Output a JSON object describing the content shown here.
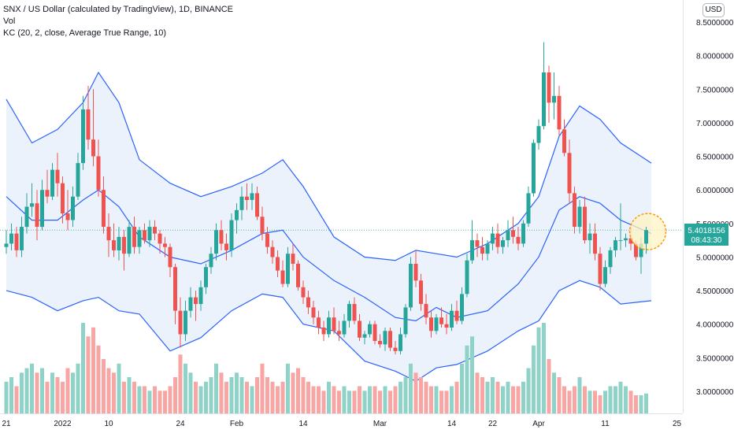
{
  "legend": {
    "title": "SNX / US Dollar (calculated by TradingView), 1D, BINANCE",
    "volume_label": "Vol",
    "indicator_label": "KC (20, 2, close, Average True Range, 10)"
  },
  "currency": "USD",
  "price_badge": {
    "price": "5.4018156",
    "countdown": "08:43:30"
  },
  "colors": {
    "up": "#26a69a",
    "down": "#ef5350",
    "volume_up": "#8fd3c8",
    "volume_down": "#f7a6a4",
    "channel_line": "#2962ff",
    "channel_fill": "#eaf1fb",
    "price_line": "#26a69a",
    "highlight_circle": "#ff9800",
    "highlight_fill": "#fff3c4"
  },
  "chart_data": {
    "type": "candlestick",
    "y_axis": {
      "ticks": [
        "3.0000000",
        "3.5000000",
        "4.0000000",
        "4.5000000",
        "5.0000000",
        "5.5000000",
        "6.0000000",
        "6.5000000",
        "7.0000000",
        "7.5000000",
        "8.0000000",
        "8.5000000"
      ],
      "tick_values": [
        3.0,
        3.5,
        4.0,
        4.5,
        5.0,
        5.5,
        6.0,
        6.5,
        7.0,
        7.5,
        8.0,
        8.5
      ],
      "range": [
        2.72,
        8.6
      ]
    },
    "x_axis": {
      "ticks": [
        "21",
        "2022",
        "10",
        "24",
        "Feb",
        "14",
        "Mar",
        "14",
        "22",
        "Apr",
        "11",
        "25"
      ],
      "tick_day_index": [
        0,
        11,
        20,
        34,
        45,
        58,
        73,
        87,
        95,
        104,
        117,
        131
      ]
    },
    "first_day": "2021-12-21",
    "candles": [
      [
        5.15,
        5.4,
        5.05,
        5.2
      ],
      [
        5.2,
        5.5,
        5.1,
        5.35
      ],
      [
        5.35,
        5.45,
        5.0,
        5.1
      ],
      [
        5.1,
        5.6,
        5.0,
        5.45
      ],
      [
        5.45,
        5.95,
        5.35,
        5.75
      ],
      [
        5.75,
        6.1,
        5.6,
        5.8
      ],
      [
        5.8,
        6.0,
        5.25,
        5.45
      ],
      [
        5.45,
        6.15,
        5.4,
        6.0
      ],
      [
        6.0,
        6.3,
        5.8,
        5.9
      ],
      [
        5.9,
        6.4,
        5.85,
        6.3
      ],
      [
        6.3,
        6.55,
        5.9,
        6.1
      ],
      [
        6.1,
        6.2,
        5.5,
        5.65
      ],
      [
        5.65,
        6.0,
        5.4,
        5.55
      ],
      [
        5.55,
        6.05,
        5.45,
        5.9
      ],
      [
        5.9,
        6.55,
        5.85,
        6.4
      ],
      [
        6.4,
        7.4,
        6.3,
        7.2
      ],
      [
        7.2,
        7.55,
        6.6,
        6.75
      ],
      [
        6.75,
        7.5,
        6.35,
        6.5
      ],
      [
        6.5,
        6.75,
        5.9,
        6.0
      ],
      [
        6.0,
        6.2,
        5.35,
        5.45
      ],
      [
        5.45,
        5.65,
        5.0,
        5.25
      ],
      [
        5.25,
        5.5,
        5.0,
        5.1
      ],
      [
        5.1,
        5.45,
        4.95,
        5.3
      ],
      [
        5.3,
        5.4,
        4.8,
        5.05
      ],
      [
        5.05,
        5.55,
        5.0,
        5.45
      ],
      [
        5.45,
        5.6,
        5.05,
        5.15
      ],
      [
        5.15,
        5.45,
        5.05,
        5.4
      ],
      [
        5.4,
        5.5,
        5.2,
        5.25
      ],
      [
        5.25,
        5.55,
        5.15,
        5.45
      ],
      [
        5.45,
        5.55,
        5.25,
        5.35
      ],
      [
        5.35,
        5.4,
        5.05,
        5.2
      ],
      [
        5.2,
        5.3,
        5.0,
        5.15
      ],
      [
        5.15,
        5.2,
        4.7,
        4.85
      ],
      [
        4.85,
        4.9,
        4.0,
        4.2
      ],
      [
        4.2,
        4.4,
        3.65,
        3.85
      ],
      [
        3.85,
        4.35,
        3.75,
        4.2
      ],
      [
        4.2,
        4.55,
        4.1,
        4.4
      ],
      [
        4.4,
        4.5,
        4.05,
        4.3
      ],
      [
        4.3,
        4.65,
        4.2,
        4.55
      ],
      [
        4.55,
        4.9,
        4.45,
        4.85
      ],
      [
        4.85,
        5.15,
        4.75,
        5.05
      ],
      [
        5.05,
        5.5,
        4.95,
        5.4
      ],
      [
        5.4,
        5.55,
        5.1,
        5.2
      ],
      [
        5.2,
        5.35,
        4.95,
        5.1
      ],
      [
        5.1,
        5.65,
        5.0,
        5.55
      ],
      [
        5.55,
        5.8,
        5.35,
        5.7
      ],
      [
        5.7,
        6.05,
        5.55,
        5.9
      ],
      [
        5.9,
        6.1,
        5.7,
        5.85
      ],
      [
        5.85,
        6.1,
        5.7,
        5.95
      ],
      [
        5.95,
        6.05,
        5.55,
        5.6
      ],
      [
        5.6,
        5.75,
        5.25,
        5.35
      ],
      [
        5.35,
        5.45,
        5.05,
        5.15
      ],
      [
        5.15,
        5.25,
        4.9,
        5.0
      ],
      [
        5.0,
        5.1,
        4.7,
        4.8
      ],
      [
        4.8,
        4.95,
        4.55,
        4.6
      ],
      [
        4.6,
        5.15,
        4.55,
        5.05
      ],
      [
        5.05,
        5.2,
        4.8,
        4.9
      ],
      [
        4.9,
        4.95,
        4.5,
        4.55
      ],
      [
        4.55,
        4.65,
        4.3,
        4.4
      ],
      [
        4.4,
        4.5,
        4.15,
        4.25
      ],
      [
        4.25,
        4.35,
        4.0,
        4.1
      ],
      [
        4.1,
        4.2,
        3.85,
        3.95
      ],
      [
        3.95,
        4.05,
        3.75,
        3.85
      ],
      [
        3.85,
        4.2,
        3.8,
        4.1
      ],
      [
        4.1,
        4.25,
        3.85,
        3.9
      ],
      [
        3.9,
        4.05,
        3.75,
        3.85
      ],
      [
        3.85,
        4.15,
        3.8,
        4.05
      ],
      [
        4.05,
        4.35,
        3.95,
        4.3
      ],
      [
        4.3,
        4.4,
        4.0,
        4.05
      ],
      [
        4.05,
        4.15,
        3.75,
        3.8
      ],
      [
        3.8,
        3.9,
        3.7,
        3.85
      ],
      [
        3.85,
        4.05,
        3.8,
        4.0
      ],
      [
        4.0,
        4.05,
        3.7,
        3.75
      ],
      [
        3.75,
        3.85,
        3.65,
        3.7
      ],
      [
        3.7,
        3.95,
        3.6,
        3.9
      ],
      [
        3.9,
        3.95,
        3.6,
        3.65
      ],
      [
        3.65,
        3.75,
        3.55,
        3.6
      ],
      [
        3.6,
        3.95,
        3.55,
        3.85
      ],
      [
        3.85,
        4.3,
        3.8,
        4.25
      ],
      [
        4.25,
        5.0,
        4.2,
        4.9
      ],
      [
        4.9,
        5.1,
        4.55,
        4.65
      ],
      [
        4.65,
        4.75,
        4.2,
        4.3
      ],
      [
        4.3,
        4.45,
        4.0,
        4.1
      ],
      [
        4.1,
        4.2,
        3.8,
        3.9
      ],
      [
        3.9,
        4.15,
        3.85,
        4.1
      ],
      [
        4.1,
        4.25,
        3.95,
        4.0
      ],
      [
        4.0,
        4.15,
        3.85,
        3.95
      ],
      [
        3.95,
        4.3,
        3.9,
        4.2
      ],
      [
        4.2,
        4.35,
        4.0,
        4.05
      ],
      [
        4.05,
        4.55,
        4.0,
        4.45
      ],
      [
        4.45,
        5.05,
        4.4,
        4.95
      ],
      [
        4.95,
        5.55,
        4.9,
        5.25
      ],
      [
        5.25,
        5.35,
        5.0,
        5.15
      ],
      [
        5.15,
        5.3,
        4.95,
        5.05
      ],
      [
        5.05,
        5.25,
        4.95,
        5.2
      ],
      [
        5.2,
        5.45,
        5.1,
        5.35
      ],
      [
        5.35,
        5.5,
        5.05,
        5.15
      ],
      [
        5.15,
        5.3,
        5.05,
        5.25
      ],
      [
        5.25,
        5.55,
        5.15,
        5.4
      ],
      [
        5.4,
        5.6,
        5.2,
        5.3
      ],
      [
        5.3,
        5.45,
        5.1,
        5.2
      ],
      [
        5.2,
        5.55,
        5.15,
        5.5
      ],
      [
        5.5,
        6.05,
        5.45,
        5.95
      ],
      [
        5.95,
        6.75,
        5.9,
        6.7
      ],
      [
        6.7,
        7.05,
        6.6,
        6.95
      ],
      [
        6.95,
        8.2,
        6.9,
        7.75
      ],
      [
        7.75,
        7.85,
        7.0,
        7.3
      ],
      [
        7.3,
        7.75,
        7.05,
        7.4
      ],
      [
        7.4,
        7.55,
        6.8,
        6.9
      ],
      [
        6.9,
        7.05,
        6.5,
        6.55
      ],
      [
        6.55,
        6.75,
        5.8,
        5.95
      ],
      [
        5.95,
        6.05,
        5.35,
        5.45
      ],
      [
        5.45,
        5.85,
        5.35,
        5.75
      ],
      [
        5.75,
        5.9,
        5.2,
        5.25
      ],
      [
        5.25,
        5.5,
        5.05,
        5.35
      ],
      [
        5.35,
        5.5,
        4.95,
        5.05
      ],
      [
        5.05,
        5.15,
        4.5,
        4.6
      ],
      [
        4.6,
        4.95,
        4.55,
        4.85
      ],
      [
        4.85,
        5.15,
        4.75,
        5.1
      ],
      [
        5.1,
        5.3,
        5.0,
        5.25
      ],
      [
        5.25,
        5.8,
        5.1,
        5.25
      ],
      [
        5.25,
        5.35,
        5.15,
        5.28
      ],
      [
        5.28,
        5.45,
        5.1,
        5.2
      ],
      [
        5.2,
        5.25,
        4.95,
        5.0
      ],
      [
        5.0,
        5.3,
        4.75,
        5.2
      ],
      [
        5.2,
        5.45,
        5.05,
        5.4
      ]
    ],
    "volumes": [
      0.35,
      0.4,
      0.3,
      0.45,
      0.5,
      0.55,
      0.45,
      0.5,
      0.35,
      0.45,
      0.4,
      0.35,
      0.5,
      0.45,
      0.55,
      1.0,
      0.85,
      0.95,
      0.75,
      0.6,
      0.5,
      0.45,
      0.55,
      0.35,
      0.4,
      0.35,
      0.3,
      0.3,
      0.25,
      0.3,
      0.25,
      0.25,
      0.3,
      0.4,
      0.65,
      0.55,
      0.45,
      0.35,
      0.3,
      0.35,
      0.4,
      0.55,
      0.45,
      0.35,
      0.4,
      0.45,
      0.4,
      0.35,
      0.3,
      0.4,
      0.55,
      0.4,
      0.35,
      0.3,
      0.35,
      0.55,
      0.45,
      0.5,
      0.4,
      0.35,
      0.3,
      0.3,
      0.25,
      0.35,
      0.3,
      0.25,
      0.3,
      0.25,
      0.25,
      0.3,
      0.25,
      0.3,
      0.3,
      0.25,
      0.3,
      0.25,
      0.3,
      0.35,
      0.4,
      0.55,
      0.45,
      0.4,
      0.35,
      0.3,
      0.3,
      0.25,
      0.25,
      0.3,
      0.35,
      0.55,
      0.75,
      0.85,
      0.45,
      0.4,
      0.35,
      0.4,
      0.35,
      0.3,
      0.35,
      0.3,
      0.3,
      0.35,
      0.5,
      0.75,
      0.95,
      1.0,
      0.6,
      0.45,
      0.4,
      0.3,
      0.25,
      0.3,
      0.4,
      0.3,
      0.25,
      0.25,
      0.2,
      0.25,
      0.3,
      0.3,
      0.35,
      0.3,
      0.25,
      0.2,
      0.2,
      0.22
    ],
    "keltner": {
      "upper": [
        [
          0,
          7.35
        ],
        [
          5,
          6.7
        ],
        [
          10,
          6.9
        ],
        [
          15,
          7.3
        ],
        [
          18,
          7.75
        ],
        [
          22,
          7.3
        ],
        [
          26,
          6.45
        ],
        [
          32,
          6.1
        ],
        [
          38,
          5.9
        ],
        [
          44,
          6.05
        ],
        [
          50,
          6.25
        ],
        [
          54,
          6.45
        ],
        [
          58,
          6.05
        ],
        [
          64,
          5.3
        ],
        [
          70,
          5.0
        ],
        [
          76,
          4.95
        ],
        [
          80,
          5.1
        ],
        [
          84,
          5.05
        ],
        [
          88,
          5.0
        ],
        [
          94,
          5.2
        ],
        [
          100,
          5.5
        ],
        [
          104,
          5.9
        ],
        [
          108,
          6.8
        ],
        [
          112,
          7.25
        ],
        [
          116,
          7.05
        ],
        [
          120,
          6.7
        ],
        [
          126,
          6.4
        ]
      ],
      "middle": [
        [
          0,
          5.9
        ],
        [
          5,
          5.55
        ],
        [
          10,
          5.55
        ],
        [
          15,
          5.85
        ],
        [
          18,
          6.0
        ],
        [
          22,
          5.75
        ],
        [
          26,
          5.3
        ],
        [
          32,
          5.0
        ],
        [
          38,
          4.9
        ],
        [
          44,
          5.1
        ],
        [
          50,
          5.35
        ],
        [
          54,
          5.4
        ],
        [
          58,
          5.0
        ],
        [
          64,
          4.65
        ],
        [
          70,
          4.4
        ],
        [
          76,
          4.1
        ],
        [
          80,
          4.05
        ],
        [
          84,
          4.25
        ],
        [
          88,
          4.1
        ],
        [
          94,
          4.2
        ],
        [
          100,
          4.6
        ],
        [
          104,
          5.0
        ],
        [
          108,
          5.7
        ],
        [
          112,
          5.9
        ],
        [
          116,
          5.8
        ],
        [
          120,
          5.55
        ],
        [
          126,
          5.35
        ]
      ],
      "lower": [
        [
          0,
          4.5
        ],
        [
          5,
          4.4
        ],
        [
          10,
          4.2
        ],
        [
          15,
          4.35
        ],
        [
          18,
          4.4
        ],
        [
          22,
          4.2
        ],
        [
          26,
          4.15
        ],
        [
          32,
          3.6
        ],
        [
          38,
          3.8
        ],
        [
          44,
          4.2
        ],
        [
          50,
          4.45
        ],
        [
          54,
          4.4
        ],
        [
          58,
          4.0
        ],
        [
          64,
          3.9
        ],
        [
          70,
          3.45
        ],
        [
          76,
          3.3
        ],
        [
          80,
          3.15
        ],
        [
          84,
          3.35
        ],
        [
          88,
          3.4
        ],
        [
          94,
          3.6
        ],
        [
          100,
          3.9
        ],
        [
          104,
          4.05
        ],
        [
          108,
          4.5
        ],
        [
          112,
          4.65
        ],
        [
          116,
          4.55
        ],
        [
          120,
          4.3
        ],
        [
          126,
          4.35
        ]
      ]
    },
    "last_price": 5.4018156,
    "highlight": {
      "day_index": 125,
      "price": 5.38
    }
  }
}
